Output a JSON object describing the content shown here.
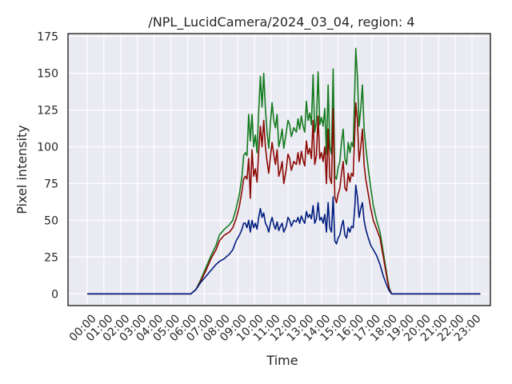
{
  "chart_data": {
    "type": "line",
    "title": "/NPL_LucidCamera/2024_03_04, region: 4",
    "xlabel": "Time",
    "ylabel": "Pixel intensity",
    "x_ticks": [
      "00:00",
      "01:00",
      "02:00",
      "03:00",
      "04:00",
      "05:00",
      "06:00",
      "07:00",
      "08:00",
      "09:00",
      "10:00",
      "11:00",
      "12:00",
      "13:00",
      "14:00",
      "15:00",
      "16:00",
      "17:00",
      "18:00",
      "19:00",
      "20:00",
      "21:00",
      "22:00",
      "23:00"
    ],
    "xlim_hours": [
      -1.15,
      24.1
    ],
    "ylim": [
      -8,
      177
    ],
    "y_ticks": [
      0,
      25,
      50,
      75,
      100,
      125,
      150,
      175
    ],
    "grid": true,
    "legend": "none",
    "series": [
      {
        "color": "#137a1e",
        "points": [
          [
            0,
            0
          ],
          [
            6.2,
            0
          ],
          [
            6.5,
            3
          ],
          [
            6.8,
            10
          ],
          [
            7.1,
            18
          ],
          [
            7.4,
            26
          ],
          [
            7.7,
            33
          ],
          [
            7.9,
            40
          ],
          [
            8.2,
            44
          ],
          [
            8.5,
            47
          ],
          [
            8.7,
            50
          ],
          [
            8.9,
            58
          ],
          [
            9.1,
            68
          ],
          [
            9.25,
            80
          ],
          [
            9.35,
            94
          ],
          [
            9.45,
            96
          ],
          [
            9.55,
            94
          ],
          [
            9.65,
            122
          ],
          [
            9.75,
            104
          ],
          [
            9.85,
            122
          ],
          [
            9.95,
            100
          ],
          [
            10.05,
            108
          ],
          [
            10.15,
            96
          ],
          [
            10.25,
            124
          ],
          [
            10.35,
            148
          ],
          [
            10.45,
            127
          ],
          [
            10.55,
            150
          ],
          [
            10.65,
            126
          ],
          [
            10.75,
            110
          ],
          [
            10.85,
            99
          ],
          [
            10.95,
            116
          ],
          [
            11.05,
            130
          ],
          [
            11.15,
            118
          ],
          [
            11.25,
            113
          ],
          [
            11.35,
            122
          ],
          [
            11.45,
            100
          ],
          [
            11.55,
            105
          ],
          [
            11.65,
            112
          ],
          [
            11.75,
            99
          ],
          [
            11.9,
            110
          ],
          [
            12.0,
            118
          ],
          [
            12.1,
            115
          ],
          [
            12.2,
            107
          ],
          [
            12.35,
            113
          ],
          [
            12.5,
            110
          ],
          [
            12.6,
            119
          ],
          [
            12.7,
            112
          ],
          [
            12.8,
            121
          ],
          [
            12.9,
            114
          ],
          [
            13.0,
            110
          ],
          [
            13.1,
            131
          ],
          [
            13.2,
            118
          ],
          [
            13.3,
            123
          ],
          [
            13.4,
            115
          ],
          [
            13.5,
            149
          ],
          [
            13.6,
            110
          ],
          [
            13.7,
            117
          ],
          [
            13.8,
            151
          ],
          [
            13.9,
            115
          ],
          [
            14.0,
            120
          ],
          [
            14.1,
            114
          ],
          [
            14.2,
            126
          ],
          [
            14.3,
            95
          ],
          [
            14.4,
            142
          ],
          [
            14.5,
            100
          ],
          [
            14.6,
            95
          ],
          [
            14.7,
            153
          ],
          [
            14.8,
            80
          ],
          [
            14.9,
            78
          ],
          [
            15.0,
            86
          ],
          [
            15.1,
            90
          ],
          [
            15.2,
            103
          ],
          [
            15.3,
            112
          ],
          [
            15.4,
            92
          ],
          [
            15.5,
            88
          ],
          [
            15.6,
            103
          ],
          [
            15.7,
            96
          ],
          [
            15.8,
            103
          ],
          [
            15.9,
            100
          ],
          [
            16.0,
            142
          ],
          [
            16.05,
            167
          ],
          [
            16.15,
            148
          ],
          [
            16.25,
            114
          ],
          [
            16.35,
            126
          ],
          [
            16.45,
            142
          ],
          [
            16.55,
            112
          ],
          [
            16.65,
            100
          ],
          [
            16.8,
            85
          ],
          [
            16.95,
            72
          ],
          [
            17.1,
            60
          ],
          [
            17.3,
            50
          ],
          [
            17.5,
            42
          ],
          [
            17.7,
            28
          ],
          [
            17.9,
            14
          ],
          [
            18.05,
            4
          ],
          [
            18.2,
            0
          ],
          [
            23.5,
            0
          ]
        ]
      },
      {
        "color": "#8c0a04",
        "points": [
          [
            0,
            0
          ],
          [
            6.2,
            0
          ],
          [
            6.5,
            3
          ],
          [
            6.8,
            9
          ],
          [
            7.1,
            16
          ],
          [
            7.4,
            24
          ],
          [
            7.7,
            30
          ],
          [
            7.9,
            36
          ],
          [
            8.2,
            40
          ],
          [
            8.5,
            42
          ],
          [
            8.7,
            45
          ],
          [
            8.9,
            51
          ],
          [
            9.1,
            60
          ],
          [
            9.25,
            70
          ],
          [
            9.35,
            78
          ],
          [
            9.45,
            80
          ],
          [
            9.55,
            78
          ],
          [
            9.65,
            92
          ],
          [
            9.75,
            65
          ],
          [
            9.85,
            98
          ],
          [
            9.95,
            80
          ],
          [
            10.05,
            85
          ],
          [
            10.15,
            76
          ],
          [
            10.25,
            97
          ],
          [
            10.35,
            114
          ],
          [
            10.45,
            100
          ],
          [
            10.55,
            118
          ],
          [
            10.65,
            100
          ],
          [
            10.75,
            90
          ],
          [
            10.85,
            82
          ],
          [
            10.95,
            93
          ],
          [
            11.05,
            103
          ],
          [
            11.15,
            95
          ],
          [
            11.25,
            88
          ],
          [
            11.35,
            98
          ],
          [
            11.45,
            80
          ],
          [
            11.55,
            84
          ],
          [
            11.65,
            90
          ],
          [
            11.75,
            75
          ],
          [
            11.9,
            85
          ],
          [
            12.0,
            95
          ],
          [
            12.1,
            92
          ],
          [
            12.2,
            84
          ],
          [
            12.35,
            90
          ],
          [
            12.5,
            88
          ],
          [
            12.6,
            96
          ],
          [
            12.7,
            88
          ],
          [
            12.8,
            97
          ],
          [
            12.9,
            91
          ],
          [
            13.0,
            87
          ],
          [
            13.1,
            104
          ],
          [
            13.2,
            95
          ],
          [
            13.3,
            99
          ],
          [
            13.4,
            92
          ],
          [
            13.5,
            118
          ],
          [
            13.6,
            88
          ],
          [
            13.7,
            94
          ],
          [
            13.8,
            121
          ],
          [
            13.9,
            92
          ],
          [
            14.0,
            96
          ],
          [
            14.1,
            90
          ],
          [
            14.2,
            100
          ],
          [
            14.3,
            75
          ],
          [
            14.4,
            112
          ],
          [
            14.5,
            79
          ],
          [
            14.6,
            75
          ],
          [
            14.7,
            126
          ],
          [
            14.8,
            66
          ],
          [
            14.9,
            62
          ],
          [
            15.0,
            68
          ],
          [
            15.1,
            72
          ],
          [
            15.2,
            82
          ],
          [
            15.3,
            90
          ],
          [
            15.4,
            72
          ],
          [
            15.5,
            70
          ],
          [
            15.6,
            82
          ],
          [
            15.7,
            76
          ],
          [
            15.8,
            82
          ],
          [
            15.9,
            80
          ],
          [
            16.0,
            112
          ],
          [
            16.05,
            130
          ],
          [
            16.15,
            118
          ],
          [
            16.25,
            90
          ],
          [
            16.35,
            100
          ],
          [
            16.45,
            112
          ],
          [
            16.55,
            88
          ],
          [
            16.65,
            78
          ],
          [
            16.8,
            68
          ],
          [
            16.95,
            58
          ],
          [
            17.1,
            50
          ],
          [
            17.3,
            44
          ],
          [
            17.5,
            38
          ],
          [
            17.7,
            25
          ],
          [
            17.9,
            12
          ],
          [
            18.05,
            3
          ],
          [
            18.2,
            0
          ],
          [
            23.5,
            0
          ]
        ]
      },
      {
        "color": "#001c7f",
        "points": [
          [
            0,
            0
          ],
          [
            6.2,
            0
          ],
          [
            6.5,
            3
          ],
          [
            6.8,
            8
          ],
          [
            7.1,
            12
          ],
          [
            7.4,
            16
          ],
          [
            7.7,
            20
          ],
          [
            7.9,
            22
          ],
          [
            8.2,
            24
          ],
          [
            8.5,
            27
          ],
          [
            8.7,
            30
          ],
          [
            8.9,
            36
          ],
          [
            9.1,
            40
          ],
          [
            9.25,
            44
          ],
          [
            9.35,
            48
          ],
          [
            9.45,
            48
          ],
          [
            9.55,
            45
          ],
          [
            9.65,
            50
          ],
          [
            9.75,
            42
          ],
          [
            9.85,
            50
          ],
          [
            9.95,
            45
          ],
          [
            10.05,
            48
          ],
          [
            10.15,
            44
          ],
          [
            10.25,
            52
          ],
          [
            10.35,
            58
          ],
          [
            10.45,
            52
          ],
          [
            10.55,
            55
          ],
          [
            10.65,
            48
          ],
          [
            10.75,
            46
          ],
          [
            10.85,
            42
          ],
          [
            10.95,
            48
          ],
          [
            11.05,
            52
          ],
          [
            11.15,
            47
          ],
          [
            11.25,
            44
          ],
          [
            11.35,
            49
          ],
          [
            11.45,
            43
          ],
          [
            11.55,
            46
          ],
          [
            11.65,
            48
          ],
          [
            11.75,
            42
          ],
          [
            11.9,
            46
          ],
          [
            12.0,
            52
          ],
          [
            12.1,
            50
          ],
          [
            12.2,
            46
          ],
          [
            12.35,
            50
          ],
          [
            12.5,
            49
          ],
          [
            12.6,
            52
          ],
          [
            12.7,
            48
          ],
          [
            12.8,
            53
          ],
          [
            12.9,
            50
          ],
          [
            13.0,
            48
          ],
          [
            13.1,
            56
          ],
          [
            13.2,
            52
          ],
          [
            13.3,
            54
          ],
          [
            13.4,
            51
          ],
          [
            13.5,
            60
          ],
          [
            13.6,
            48
          ],
          [
            13.7,
            51
          ],
          [
            13.8,
            62
          ],
          [
            13.9,
            50
          ],
          [
            14.0,
            52
          ],
          [
            14.1,
            48
          ],
          [
            14.2,
            54
          ],
          [
            14.3,
            42
          ],
          [
            14.4,
            62
          ],
          [
            14.5,
            45
          ],
          [
            14.6,
            42
          ],
          [
            14.7,
            66
          ],
          [
            14.8,
            36
          ],
          [
            14.9,
            34
          ],
          [
            15.0,
            38
          ],
          [
            15.1,
            40
          ],
          [
            15.2,
            46
          ],
          [
            15.3,
            50
          ],
          [
            15.4,
            40
          ],
          [
            15.5,
            38
          ],
          [
            15.6,
            45
          ],
          [
            15.7,
            42
          ],
          [
            15.8,
            46
          ],
          [
            15.9,
            45
          ],
          [
            16.0,
            60
          ],
          [
            16.05,
            74
          ],
          [
            16.15,
            66
          ],
          [
            16.25,
            52
          ],
          [
            16.35,
            58
          ],
          [
            16.45,
            62
          ],
          [
            16.55,
            50
          ],
          [
            16.65,
            44
          ],
          [
            16.8,
            38
          ],
          [
            16.95,
            33
          ],
          [
            17.1,
            30
          ],
          [
            17.3,
            26
          ],
          [
            17.5,
            20
          ],
          [
            17.7,
            12
          ],
          [
            17.9,
            6
          ],
          [
            18.05,
            2
          ],
          [
            18.2,
            0
          ],
          [
            23.5,
            0
          ]
        ]
      }
    ]
  }
}
